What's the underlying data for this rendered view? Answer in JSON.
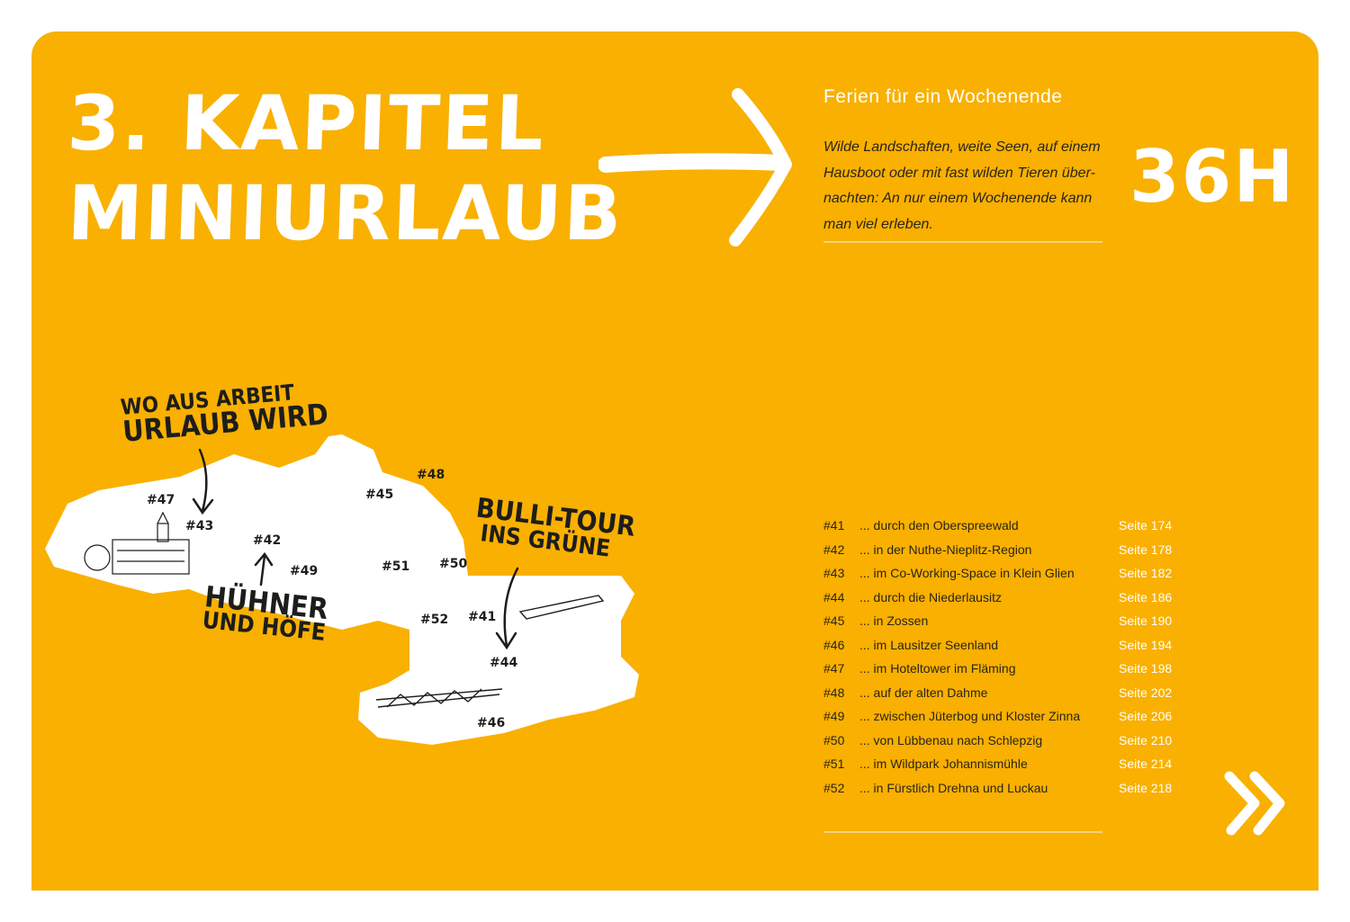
{
  "chapter": {
    "line1": "3. KAPITEL",
    "line2": "MINIURLAUB"
  },
  "subtitle": "Ferien für ein Wochenende",
  "intro": "Wilde Landschaften, weite Seen, auf einem Hausboot oder mit fast wilden Tieren über-nachten: An nur einem Wochenende kann man viel erleben.",
  "duration": "36H",
  "toc": [
    {
      "num": "#41",
      "text": "... durch den Oberspreewald",
      "page": "Seite 174"
    },
    {
      "num": "#42",
      "text": "... in der Nuthe-Nieplitz-Region",
      "page": "Seite 178"
    },
    {
      "num": "#43",
      "text": "... im Co-Working-Space in Klein Glien",
      "page": "Seite 182"
    },
    {
      "num": "#44",
      "text": "... durch die Niederlausitz",
      "page": "Seite 186"
    },
    {
      "num": "#45",
      "text": "... in Zossen",
      "page": "Seite 190"
    },
    {
      "num": "#46",
      "text": "... im Lausitzer Seenland",
      "page": "Seite 194"
    },
    {
      "num": "#47",
      "text": "... im Hoteltower im Fläming",
      "page": "Seite 198"
    },
    {
      "num": "#48",
      "text": "... auf der alten Dahme",
      "page": "Seite 202"
    },
    {
      "num": "#49",
      "text": "... zwischen Jüterbog und Kloster Zinna",
      "page": "Seite 206"
    },
    {
      "num": "#50",
      "text": "... von Lübbenau nach Schlepzig",
      "page": "Seite 210"
    },
    {
      "num": "#51",
      "text": "... im Wildpark Johannismühle",
      "page": "Seite 214"
    },
    {
      "num": "#52",
      "text": "... in Fürstlich Drehna und Luckau",
      "page": "Seite 218"
    }
  ],
  "map": {
    "markers": [
      "#47",
      "#43",
      "#45",
      "#48",
      "#42",
      "#49",
      "#51",
      "#50",
      "#52",
      "#41",
      "#44",
      "#46"
    ],
    "annotations": {
      "a1": [
        "WO AUS ARBEIT",
        "URLAUB WIRD"
      ],
      "a2": [
        "BULLI-TOUR",
        "INS GRÜNE"
      ],
      "a3": [
        "HÜHNER",
        "UND HÖFE"
      ]
    }
  },
  "colors": {
    "background": "#F9B000",
    "text": "#2a2418",
    "highlight": "#ffffff"
  },
  "icons": [
    "arrow-right-icon",
    "double-chevron-right-icon"
  ]
}
